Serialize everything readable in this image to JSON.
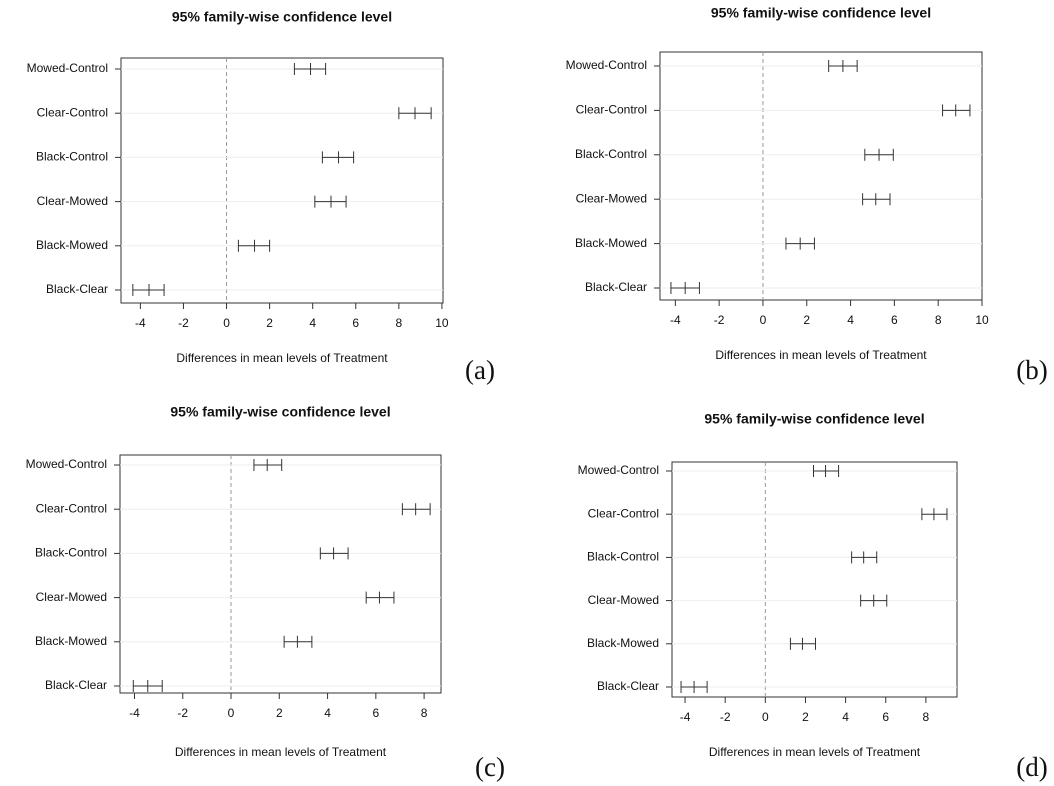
{
  "chart_data": [
    {
      "type": "interval",
      "title": "95% family-wise confidence level",
      "x_label": "Differences in mean levels of Treatment",
      "panel_label": "(a)",
      "categories": [
        "Mowed-Control",
        "Clear-Control",
        "Black-Control",
        "Clear-Mowed",
        "Black-Mowed",
        "Black-Clear"
      ],
      "lower": [
        3.15,
        8.0,
        4.45,
        4.1,
        0.55,
        -4.35
      ],
      "values": [
        3.9,
        8.75,
        5.2,
        4.85,
        1.3,
        -3.6
      ],
      "upper": [
        4.6,
        9.5,
        5.9,
        5.55,
        2.0,
        -2.9
      ],
      "xlim": [
        -4.9,
        10.05
      ],
      "xticks": [
        -4,
        -2,
        0,
        2,
        4,
        6,
        8,
        10
      ],
      "grid": true
    },
    {
      "type": "interval",
      "title": "95% family-wise confidence level",
      "x_label": "Differences in mean levels of Treatment",
      "panel_label": "(b)",
      "categories": [
        "Mowed-Control",
        "Clear-Control",
        "Black-Control",
        "Clear-Mowed",
        "Black-Mowed",
        "Black-Clear"
      ],
      "lower": [
        3.0,
        8.2,
        4.65,
        4.55,
        1.05,
        -4.2
      ],
      "values": [
        3.65,
        8.8,
        5.3,
        5.15,
        1.7,
        -3.55
      ],
      "upper": [
        4.3,
        9.45,
        5.95,
        5.8,
        2.35,
        -2.9
      ],
      "xlim": [
        -4.7,
        10.0
      ],
      "xticks": [
        -4,
        -2,
        0,
        2,
        4,
        6,
        8,
        10
      ],
      "grid": true
    },
    {
      "type": "interval",
      "title": "95% family-wise confidence level",
      "x_label": "Differences in mean levels of Treatment",
      "panel_label": "(c)",
      "categories": [
        "Mowed-Control",
        "Clear-Control",
        "Black-Control",
        "Clear-Mowed",
        "Black-Mowed",
        "Black-Clear"
      ],
      "lower": [
        0.95,
        7.1,
        3.7,
        5.6,
        2.2,
        -4.05
      ],
      "values": [
        1.5,
        7.65,
        4.25,
        6.15,
        2.75,
        -3.45
      ],
      "upper": [
        2.1,
        8.25,
        4.85,
        6.75,
        3.35,
        -2.85
      ],
      "xlim": [
        -4.6,
        8.7
      ],
      "xticks": [
        -4,
        -2,
        0,
        2,
        4,
        6,
        8
      ],
      "grid": true
    },
    {
      "type": "interval",
      "title": "95% family-wise confidence level",
      "x_label": "Differences in mean levels of Treatment",
      "panel_label": "(d)",
      "categories": [
        "Mowed-Control",
        "Clear-Control",
        "Black-Control",
        "Clear-Mowed",
        "Black-Mowed",
        "Black-Clear"
      ],
      "lower": [
        2.4,
        7.8,
        4.3,
        4.75,
        1.25,
        -4.2
      ],
      "values": [
        3.0,
        8.4,
        4.9,
        5.4,
        1.85,
        -3.55
      ],
      "upper": [
        3.65,
        9.05,
        5.55,
        6.05,
        2.5,
        -2.9
      ],
      "xlim": [
        -4.65,
        9.55
      ],
      "xticks": [
        -4,
        -2,
        0,
        2,
        4,
        6,
        8
      ],
      "grid": true
    }
  ]
}
